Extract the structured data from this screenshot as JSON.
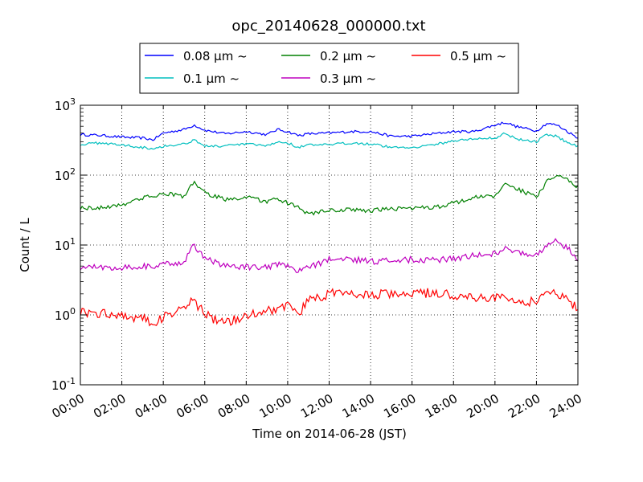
{
  "chart_data": {
    "type": "line",
    "title": "opc_20140628_000000.txt",
    "xlabel": "Time on 2014-06-28 (JST)",
    "ylabel": "Count / L",
    "x_ticks": [
      "00:00",
      "02:00",
      "04:00",
      "06:00",
      "08:00",
      "10:00",
      "12:00",
      "14:00",
      "16:00",
      "18:00",
      "20:00",
      "22:00",
      "24:00"
    ],
    "x_tick_hours": [
      0,
      2,
      4,
      6,
      8,
      10,
      12,
      14,
      16,
      18,
      20,
      22,
      24
    ],
    "xlim_hours": [
      0,
      24
    ],
    "yscale": "log",
    "ylim": [
      0.1,
      1000
    ],
    "y_ticks": [
      {
        "value": 0.1,
        "base": "10",
        "exp": "-1"
      },
      {
        "value": 1,
        "base": "10",
        "exp": "0"
      },
      {
        "value": 10,
        "base": "10",
        "exp": "1"
      },
      {
        "value": 100,
        "base": "10",
        "exp": "2"
      },
      {
        "value": 1000,
        "base": "10",
        "exp": "3"
      }
    ],
    "grid": true,
    "legend_position": "top-center (outside, above axes)",
    "x_hours": [
      0,
      1,
      2,
      3,
      3.5,
      4,
      5,
      5.5,
      6,
      7,
      8,
      9,
      9.5,
      10,
      10.5,
      11,
      12,
      13,
      14,
      15,
      16,
      17,
      18,
      19,
      20,
      20.5,
      21,
      22,
      22.5,
      23,
      23.5,
      24
    ],
    "series": [
      {
        "name": "0.08 μm ~",
        "color": "#0000ff",
        "values": [
          380,
          370,
          350,
          340,
          320,
          400,
          450,
          520,
          440,
          390,
          420,
          380,
          450,
          420,
          370,
          390,
          400,
          420,
          420,
          360,
          360,
          390,
          420,
          420,
          520,
          570,
          500,
          430,
          550,
          520,
          420,
          340
        ]
      },
      {
        "name": "0.1 μm ~",
        "color": "#00bfbf",
        "values": [
          275,
          290,
          270,
          250,
          240,
          260,
          280,
          320,
          260,
          260,
          280,
          260,
          300,
          290,
          250,
          270,
          270,
          290,
          280,
          250,
          250,
          270,
          310,
          330,
          340,
          400,
          330,
          300,
          380,
          360,
          290,
          260
        ]
      },
      {
        "name": "0.2 μm ~",
        "color": "#008000",
        "values": [
          34,
          34,
          38,
          47,
          50,
          55,
          50,
          80,
          55,
          45,
          48,
          42,
          45,
          40,
          34,
          28,
          31,
          32,
          31,
          33,
          34,
          34,
          40,
          48,
          50,
          78,
          65,
          48,
          80,
          100,
          85,
          68
        ]
      },
      {
        "name": "0.3 μm ~",
        "color": "#bf00bf",
        "values": [
          4.8,
          4.8,
          4.8,
          5,
          4.8,
          5.2,
          5.8,
          10,
          6.5,
          5,
          4.8,
          4.8,
          5.2,
          4.8,
          4.2,
          4.8,
          6.2,
          6.3,
          5.8,
          6,
          6.2,
          6,
          6.5,
          7,
          7.5,
          9.5,
          8,
          7,
          10,
          11.5,
          9,
          6.5
        ]
      },
      {
        "name": "0.5 μm ~",
        "color": "#ff0000",
        "values": [
          1.1,
          1.05,
          1,
          0.9,
          0.75,
          0.9,
          1.4,
          1.6,
          1,
          0.75,
          1,
          1.2,
          1.2,
          1.35,
          1,
          1.6,
          2,
          2,
          1.9,
          2,
          2,
          2.1,
          1.9,
          1.8,
          1.8,
          1.7,
          1.6,
          1.5,
          2.2,
          2,
          1.6,
          1.3
        ]
      }
    ]
  }
}
